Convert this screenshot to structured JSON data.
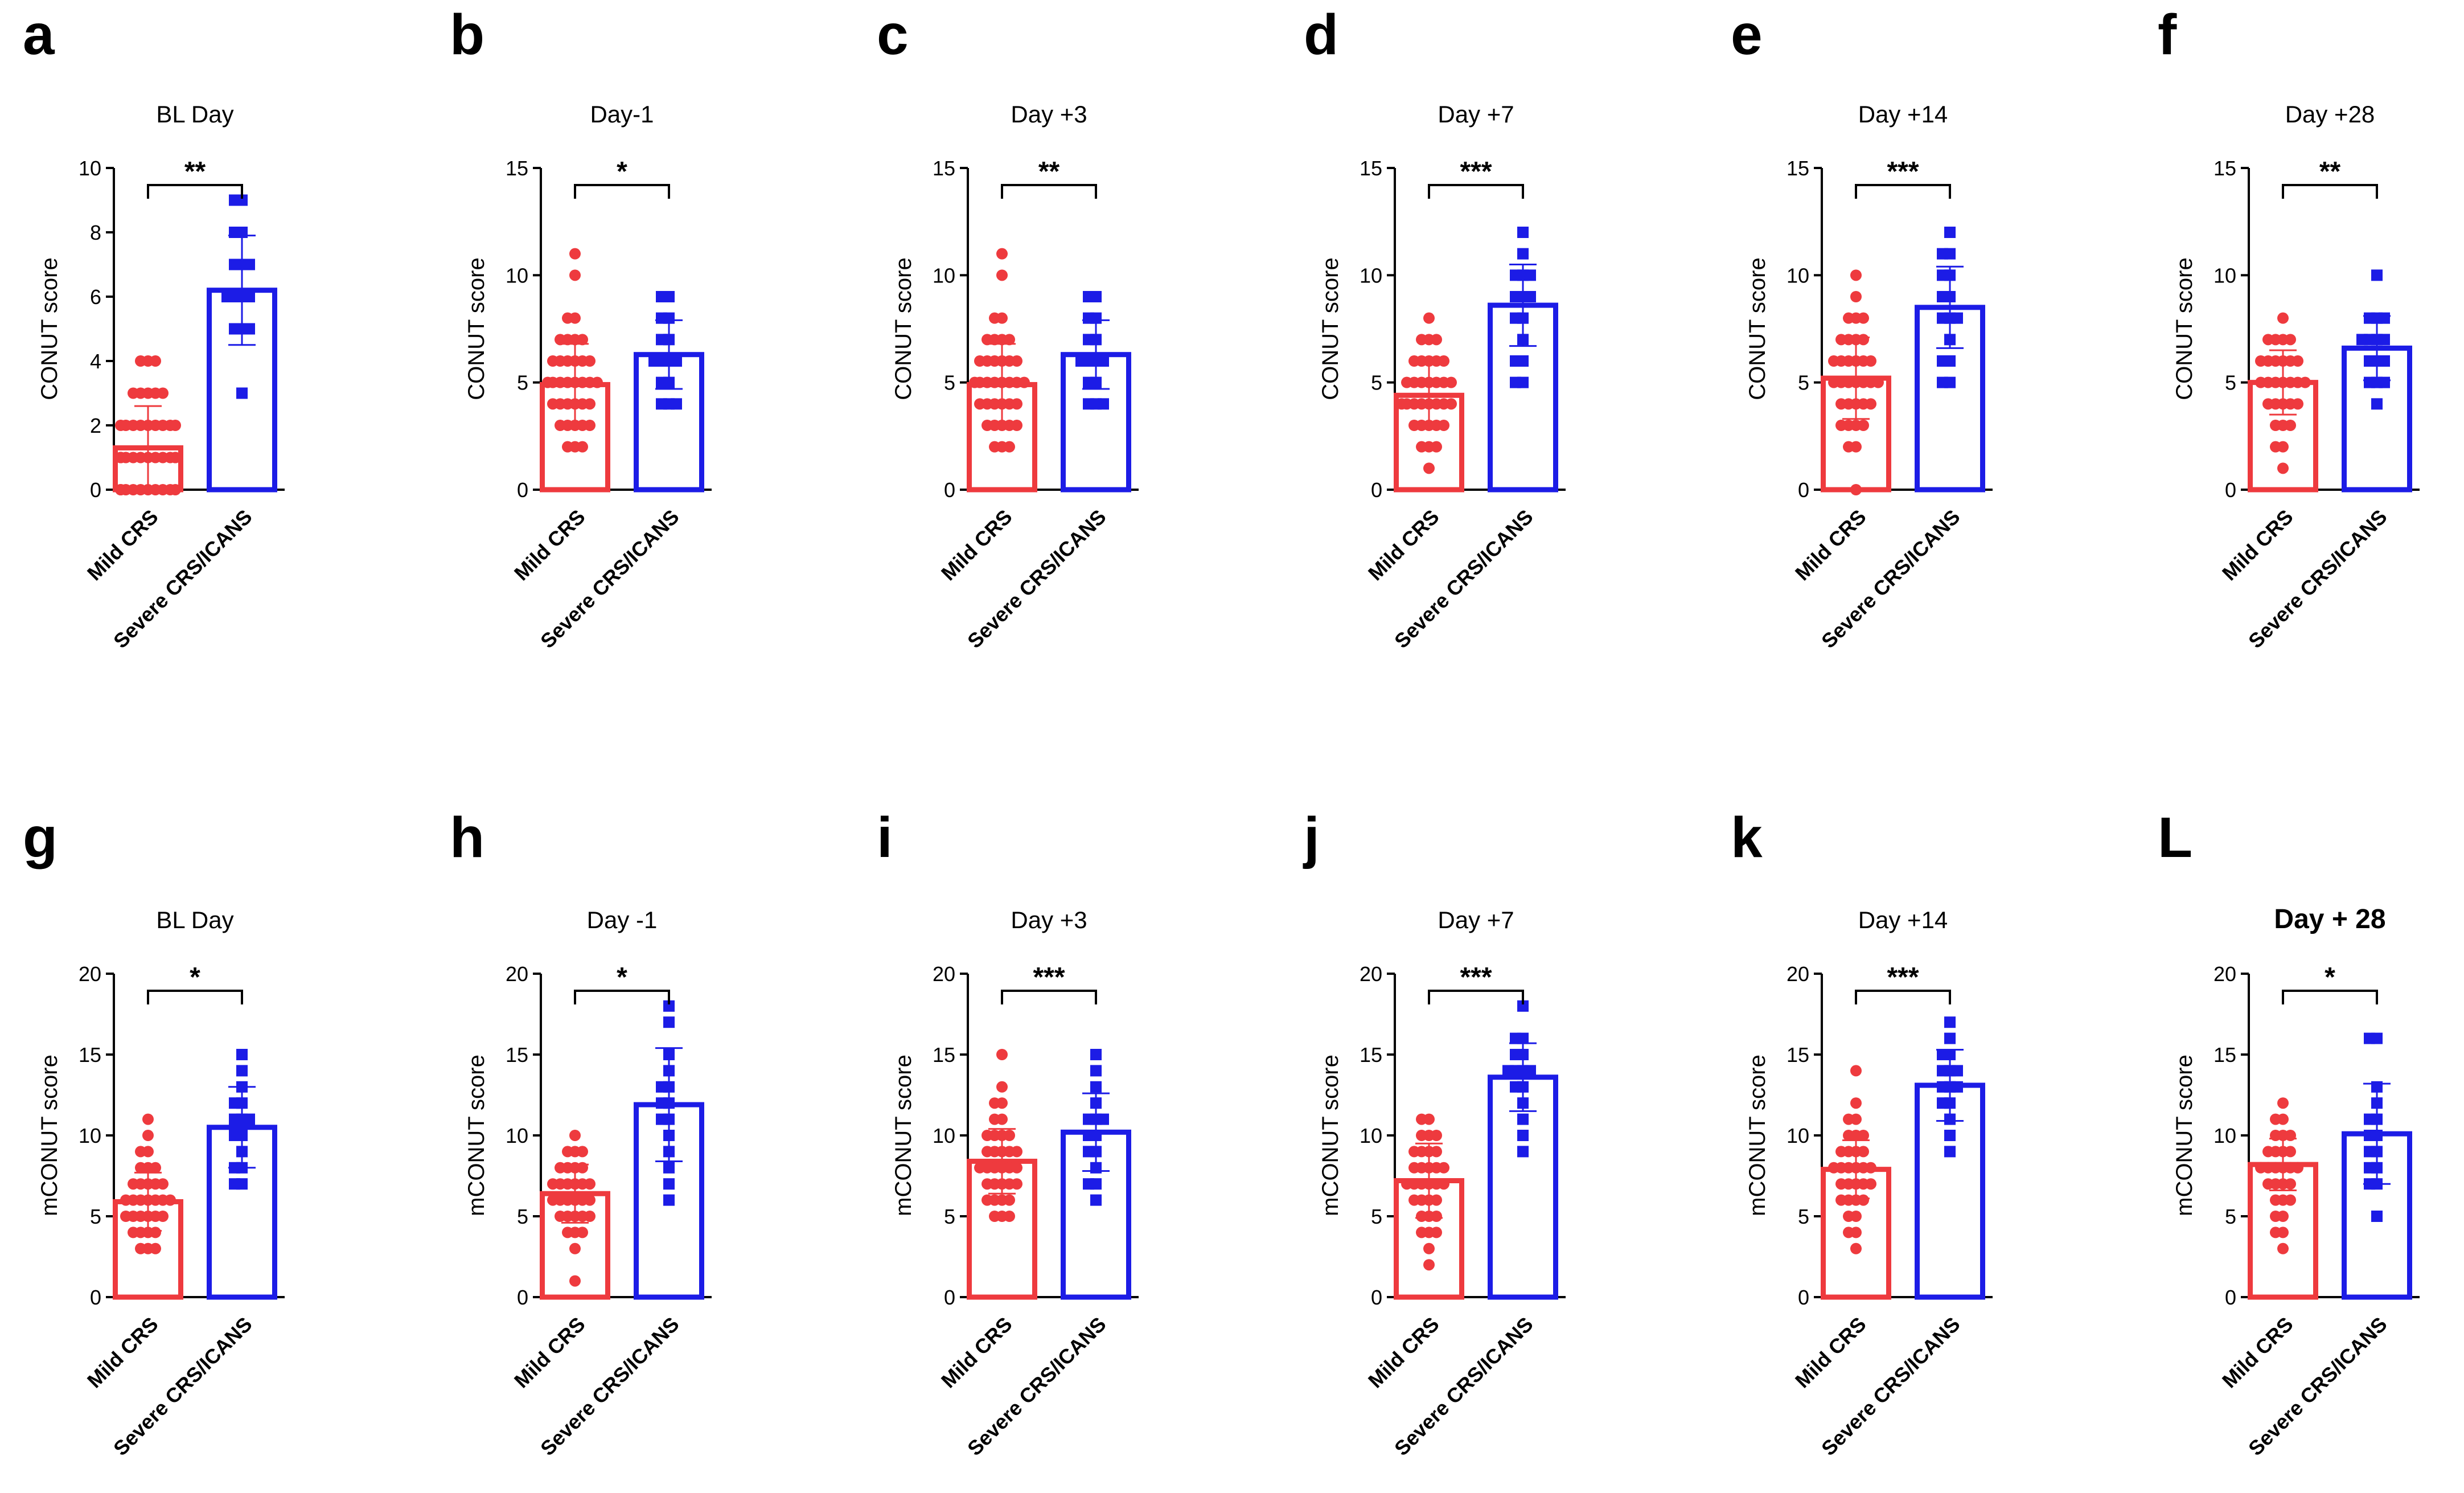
{
  "colors": {
    "mild": "#ee3a3e",
    "severe": "#1c1ce6",
    "axis": "#000000"
  },
  "chart_data": [
    {
      "panel": "a",
      "type": "bar",
      "title": "BL Day",
      "title_bold": false,
      "ylabel": "CONUT score",
      "ylim": [
        0,
        10
      ],
      "yticks": [
        "0",
        "2",
        "4",
        "6",
        "8",
        "10"
      ],
      "categories": [
        "Mild CRS",
        "Severe CRS/ICANS"
      ],
      "significance": "**",
      "series": [
        {
          "name": "Mild CRS",
          "mean": 1.3,
          "sd": 1.3,
          "points": [
            0,
            0,
            0,
            0,
            0,
            0,
            0,
            0,
            0,
            0,
            1,
            1,
            1,
            1,
            1,
            1,
            1,
            1,
            1,
            1,
            1,
            1,
            2,
            2,
            2,
            2,
            2,
            2,
            2,
            2,
            2,
            3,
            3,
            3,
            3,
            3,
            4,
            4,
            4
          ]
        },
        {
          "name": "Severe CRS/ICANS",
          "mean": 6.2,
          "sd": 1.7,
          "points": [
            3,
            5,
            5,
            5,
            6,
            6,
            6,
            6,
            7,
            7,
            7,
            8,
            8,
            9,
            9
          ]
        }
      ]
    },
    {
      "panel": "b",
      "type": "bar",
      "title": "Day-1",
      "title_bold": false,
      "ylabel": "CONUT score",
      "ylim": [
        0,
        15
      ],
      "yticks": [
        "0",
        "5",
        "10",
        "15"
      ],
      "categories": [
        "Mild CRS",
        "Severe CRS/ICANS"
      ],
      "significance": "*",
      "series": [
        {
          "name": "Mild CRS",
          "mean": 4.9,
          "sd": 1.9,
          "points": [
            2,
            2,
            2,
            3,
            3,
            3,
            3,
            3,
            4,
            4,
            4,
            4,
            4,
            4,
            5,
            5,
            5,
            5,
            5,
            5,
            5,
            5,
            6,
            6,
            6,
            6,
            6,
            6,
            7,
            7,
            7,
            7,
            8,
            8,
            10,
            11
          ]
        },
        {
          "name": "Severe CRS/ICANS",
          "mean": 6.3,
          "sd": 1.6,
          "points": [
            4,
            4,
            4,
            5,
            5,
            6,
            6,
            6,
            6,
            7,
            7,
            8,
            8,
            9,
            9
          ]
        }
      ]
    },
    {
      "panel": "c",
      "type": "bar",
      "title": "Day +3",
      "title_bold": false,
      "ylabel": "CONUT score",
      "ylim": [
        0,
        15
      ],
      "yticks": [
        "0",
        "5",
        "10",
        "15"
      ],
      "categories": [
        "Mild CRS",
        "Severe CRS/ICANS"
      ],
      "significance": "**",
      "series": [
        {
          "name": "Mild CRS",
          "mean": 4.9,
          "sd": 1.9,
          "points": [
            2,
            2,
            2,
            3,
            3,
            3,
            3,
            3,
            4,
            4,
            4,
            4,
            4,
            4,
            5,
            5,
            5,
            5,
            5,
            5,
            5,
            5,
            6,
            6,
            6,
            6,
            6,
            6,
            7,
            7,
            7,
            7,
            8,
            8,
            10,
            11
          ]
        },
        {
          "name": "Severe CRS/ICANS",
          "mean": 6.3,
          "sd": 1.6,
          "points": [
            4,
            4,
            4,
            5,
            5,
            6,
            6,
            6,
            6,
            7,
            7,
            8,
            8,
            9,
            9
          ]
        }
      ]
    },
    {
      "panel": "d",
      "type": "bar",
      "title": "Day +7",
      "title_bold": false,
      "ylabel": "CONUT score",
      "ylim": [
        0,
        15
      ],
      "yticks": [
        "0",
        "5",
        "10",
        "15"
      ],
      "categories": [
        "Mild CRS",
        "Severe CRS/ICANS"
      ],
      "significance": "***",
      "series": [
        {
          "name": "Mild CRS",
          "mean": 4.4,
          "sd": 1.5,
          "points": [
            1,
            2,
            2,
            2,
            3,
            3,
            3,
            3,
            3,
            4,
            4,
            4,
            4,
            4,
            4,
            4,
            4,
            5,
            5,
            5,
            5,
            5,
            5,
            5,
            6,
            6,
            6,
            6,
            6,
            7,
            7,
            7,
            8
          ]
        },
        {
          "name": "Severe CRS/ICANS",
          "mean": 8.6,
          "sd": 1.9,
          "points": [
            5,
            5,
            6,
            6,
            7,
            8,
            8,
            9,
            9,
            9,
            10,
            10,
            10,
            11,
            12
          ]
        }
      ]
    },
    {
      "panel": "e",
      "type": "bar",
      "title": "Day +14",
      "title_bold": false,
      "ylabel": "CONUT score",
      "ylim": [
        0,
        15
      ],
      "yticks": [
        "0",
        "5",
        "10",
        "15"
      ],
      "categories": [
        "Mild CRS",
        "Severe CRS/ICANS"
      ],
      "significance": "***",
      "series": [
        {
          "name": "Mild CRS",
          "mean": 5.2,
          "sd": 1.9,
          "points": [
            0,
            2,
            2,
            3,
            3,
            3,
            3,
            4,
            4,
            4,
            4,
            4,
            5,
            5,
            5,
            5,
            5,
            5,
            5,
            6,
            6,
            6,
            6,
            6,
            6,
            7,
            7,
            7,
            7,
            8,
            8,
            8,
            9,
            10
          ]
        },
        {
          "name": "Severe CRS/ICANS",
          "mean": 8.5,
          "sd": 1.9,
          "points": [
            5,
            5,
            6,
            6,
            7,
            8,
            8,
            8,
            9,
            9,
            10,
            10,
            11,
            11,
            12
          ]
        }
      ]
    },
    {
      "panel": "f",
      "type": "bar",
      "title": "Day +28",
      "title_bold": false,
      "ylabel": "CONUT score",
      "ylim": [
        0,
        15
      ],
      "yticks": [
        "0",
        "5",
        "10",
        "15"
      ],
      "categories": [
        "Mild CRS",
        "Severe CRS/ICANS"
      ],
      "significance": "**",
      "series": [
        {
          "name": "Mild CRS",
          "mean": 5.0,
          "sd": 1.5,
          "points": [
            1,
            2,
            2,
            3,
            3,
            3,
            4,
            4,
            4,
            4,
            4,
            5,
            5,
            5,
            5,
            5,
            5,
            5,
            6,
            6,
            6,
            6,
            6,
            6,
            7,
            7,
            7,
            7,
            8
          ]
        },
        {
          "name": "Severe CRS/ICANS",
          "mean": 6.6,
          "sd": 1.5,
          "points": [
            4,
            5,
            5,
            5,
            6,
            6,
            6,
            7,
            7,
            7,
            7,
            8,
            8,
            8,
            10
          ]
        }
      ]
    },
    {
      "panel": "g",
      "type": "bar",
      "title": "BL Day",
      "title_bold": false,
      "ylabel": "mCONUT score",
      "ylim": [
        0,
        20
      ],
      "yticks": [
        "0",
        "5",
        "10",
        "15",
        "20"
      ],
      "categories": [
        "Mild CRS",
        "Severe CRS/ICANS"
      ],
      "significance": "*",
      "series": [
        {
          "name": "Mild CRS",
          "mean": 5.9,
          "sd": 1.8,
          "points": [
            3,
            3,
            3,
            4,
            4,
            4,
            4,
            5,
            5,
            5,
            5,
            5,
            5,
            6,
            6,
            6,
            6,
            6,
            6,
            6,
            7,
            7,
            7,
            7,
            7,
            8,
            8,
            8,
            9,
            9,
            10,
            11
          ]
        },
        {
          "name": "Severe CRS/ICANS",
          "mean": 10.5,
          "sd": 2.5,
          "points": [
            7,
            7,
            8,
            8,
            9,
            10,
            10,
            11,
            11,
            11,
            12,
            12,
            13,
            14,
            15
          ]
        }
      ]
    },
    {
      "panel": "h",
      "type": "bar",
      "title": "Day -1",
      "title_bold": false,
      "ylabel": "mCONUT score",
      "ylim": [
        0,
        20
      ],
      "yticks": [
        "0",
        "5",
        "10",
        "15",
        "20"
      ],
      "categories": [
        "Mild CRS",
        "Severe CRS/ICANS"
      ],
      "significance": "*",
      "series": [
        {
          "name": "Mild CRS",
          "mean": 6.4,
          "sd": 1.8,
          "points": [
            1,
            3,
            4,
            4,
            4,
            5,
            5,
            5,
            5,
            5,
            6,
            6,
            6,
            6,
            6,
            6,
            7,
            7,
            7,
            7,
            7,
            7,
            8,
            8,
            8,
            8,
            9,
            9,
            9,
            10
          ]
        },
        {
          "name": "Severe CRS/ICANS",
          "mean": 11.9,
          "sd": 3.5,
          "points": [
            6,
            7,
            8,
            9,
            10,
            11,
            11,
            12,
            12,
            13,
            13,
            14,
            15,
            17,
            18
          ]
        }
      ]
    },
    {
      "panel": "i",
      "type": "bar",
      "title": "Day +3",
      "title_bold": false,
      "ylabel": "mCONUT score",
      "ylim": [
        0,
        20
      ],
      "yticks": [
        "0",
        "5",
        "10",
        "15",
        "20"
      ],
      "categories": [
        "Mild CRS",
        "Severe CRS/ICANS"
      ],
      "significance": "***",
      "series": [
        {
          "name": "Mild CRS",
          "mean": 8.4,
          "sd": 2.0,
          "points": [
            5,
            5,
            5,
            6,
            6,
            6,
            6,
            7,
            7,
            7,
            7,
            7,
            8,
            8,
            8,
            8,
            8,
            8,
            9,
            9,
            9,
            9,
            9,
            10,
            10,
            10,
            10,
            11,
            11,
            12,
            12,
            13,
            15
          ]
        },
        {
          "name": "Severe CRS/ICANS",
          "mean": 10.2,
          "sd": 2.4,
          "points": [
            6,
            7,
            7,
            8,
            9,
            9,
            10,
            10,
            11,
            11,
            11,
            12,
            13,
            14,
            15
          ]
        }
      ]
    },
    {
      "panel": "j",
      "type": "bar",
      "title": "Day +7",
      "title_bold": false,
      "ylabel": "mCONUT score",
      "ylim": [
        0,
        20
      ],
      "yticks": [
        "0",
        "5",
        "10",
        "15",
        "20"
      ],
      "categories": [
        "Mild CRS",
        "Severe CRS/ICANS"
      ],
      "significance": "***",
      "series": [
        {
          "name": "Mild CRS",
          "mean": 7.2,
          "sd": 2.3,
          "points": [
            2,
            3,
            4,
            4,
            4,
            5,
            5,
            5,
            6,
            6,
            6,
            6,
            7,
            7,
            7,
            7,
            7,
            7,
            8,
            8,
            8,
            8,
            8,
            9,
            9,
            9,
            9,
            10,
            10,
            10,
            11,
            11
          ]
        },
        {
          "name": "Severe CRS/ICANS",
          "mean": 13.6,
          "sd": 2.1,
          "points": [
            9,
            10,
            11,
            12,
            13,
            13,
            14,
            14,
            14,
            14,
            15,
            15,
            16,
            16,
            18
          ]
        }
      ]
    },
    {
      "panel": "k",
      "type": "bar",
      "title": "Day +14",
      "title_bold": false,
      "ylabel": "mCONUT score",
      "ylim": [
        0,
        20
      ],
      "yticks": [
        "0",
        "5",
        "10",
        "15",
        "20"
      ],
      "categories": [
        "Mild CRS",
        "Severe CRS/ICANS"
      ],
      "significance": "***",
      "series": [
        {
          "name": "Mild CRS",
          "mean": 7.9,
          "sd": 1.8,
          "points": [
            3,
            4,
            4,
            5,
            5,
            6,
            6,
            6,
            6,
            7,
            7,
            7,
            7,
            7,
            8,
            8,
            8,
            8,
            8,
            8,
            9,
            9,
            9,
            9,
            10,
            10,
            10,
            11,
            11,
            12,
            14
          ]
        },
        {
          "name": "Severe CRS/ICANS",
          "mean": 13.1,
          "sd": 2.2,
          "points": [
            9,
            10,
            11,
            12,
            12,
            13,
            13,
            13,
            14,
            14,
            14,
            15,
            15,
            16,
            17
          ]
        }
      ]
    },
    {
      "panel": "L",
      "type": "bar",
      "title": "Day + 28",
      "title_bold": true,
      "ylabel": "mCONUT score",
      "ylim": [
        0,
        20
      ],
      "yticks": [
        "0",
        "5",
        "10",
        "15",
        "20"
      ],
      "categories": [
        "Mild CRS",
        "Severe CRS/ICANS"
      ],
      "significance": "*",
      "series": [
        {
          "name": "Mild CRS",
          "mean": 8.2,
          "sd": 1.6,
          "points": [
            3,
            4,
            4,
            5,
            5,
            6,
            6,
            6,
            7,
            7,
            7,
            7,
            8,
            8,
            8,
            8,
            8,
            8,
            9,
            9,
            9,
            9,
            10,
            10,
            10,
            11,
            11,
            12
          ]
        },
        {
          "name": "Severe CRS/ICANS",
          "mean": 10.1,
          "sd": 3.1,
          "points": [
            5,
            7,
            7,
            8,
            8,
            9,
            9,
            10,
            10,
            11,
            11,
            12,
            13,
            16,
            16
          ]
        }
      ]
    }
  ]
}
